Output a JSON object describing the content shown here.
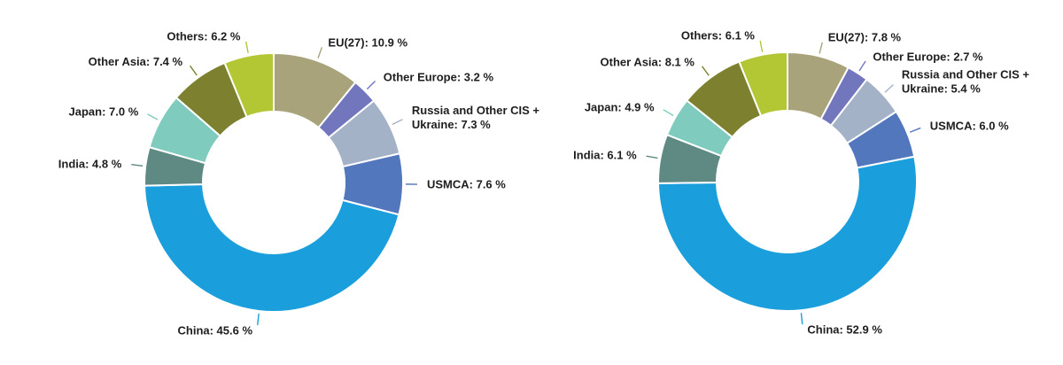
{
  "page": {
    "background_color": "#ffffff",
    "text_color": "#1e1e1e"
  },
  "chart_data": [
    {
      "type": "pie",
      "subtype": "donut",
      "name": "left-donut",
      "title": "",
      "legend": "none",
      "labels_style": "outside-with-leader-lines",
      "label_format": "{label}: {value} %",
      "start_angle_deg": 0,
      "direction": "clockwise",
      "slices": [
        {
          "label": "EU(27)",
          "value": 10.9,
          "color": "#a9a37b"
        },
        {
          "label": "Other Europe",
          "value": 3.2,
          "color": "#7277bd"
        },
        {
          "label": "Russia and Other CIS + Ukraine",
          "value": 7.3,
          "color": "#a4b2c7"
        },
        {
          "label": "USMCA",
          "value": 7.6,
          "color": "#5377bd"
        },
        {
          "label": "China",
          "value": 45.6,
          "color": "#1b9fdc"
        },
        {
          "label": "India",
          "value": 4.8,
          "color": "#5f8a84"
        },
        {
          "label": "Japan",
          "value": 7.0,
          "color": "#7fccbf"
        },
        {
          "label": "Other Asia",
          "value": 7.4,
          "color": "#7d812f"
        },
        {
          "label": "Others",
          "value": 6.2,
          "color": "#b3c735"
        }
      ]
    },
    {
      "type": "pie",
      "subtype": "donut",
      "name": "right-donut",
      "title": "",
      "legend": "none",
      "labels_style": "outside-with-leader-lines",
      "label_format": "{label}: {value} %",
      "start_angle_deg": 0,
      "direction": "clockwise",
      "slices": [
        {
          "label": "EU(27)",
          "value": 7.8,
          "color": "#a9a37b"
        },
        {
          "label": "Other Europe",
          "value": 2.7,
          "color": "#7277bd"
        },
        {
          "label": "Russia and Other CIS + Ukraine",
          "value": 5.4,
          "color": "#a4b2c7"
        },
        {
          "label": "USMCA",
          "value": 6.0,
          "color": "#5377bd"
        },
        {
          "label": "China",
          "value": 52.9,
          "color": "#1b9fdc"
        },
        {
          "label": "India",
          "value": 6.1,
          "color": "#5f8a84"
        },
        {
          "label": "Japan",
          "value": 4.9,
          "color": "#7fccbf"
        },
        {
          "label": "Other Asia",
          "value": 8.1,
          "color": "#7d812f"
        },
        {
          "label": "Others",
          "value": 6.1,
          "color": "#b3c735"
        }
      ]
    }
  ]
}
